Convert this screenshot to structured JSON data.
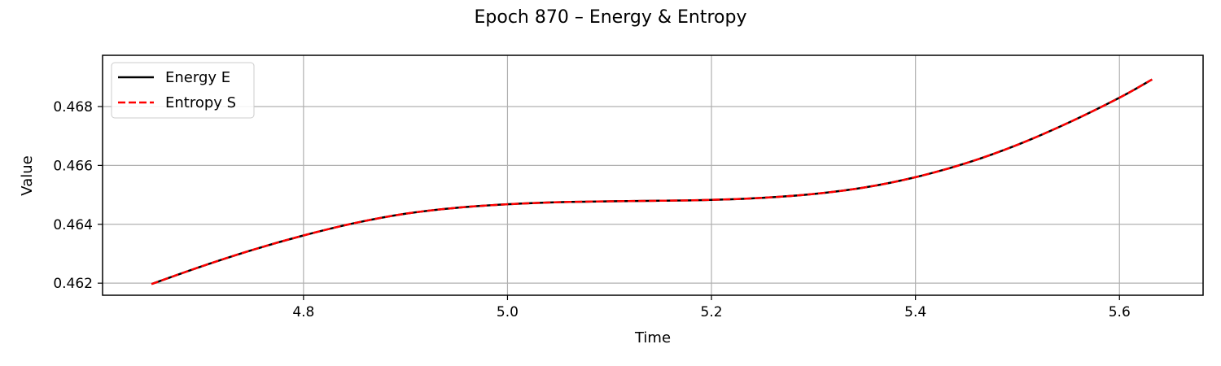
{
  "chart_data": {
    "type": "line",
    "title": "Epoch 870 – Energy & Entropy",
    "xlabel": "Time",
    "ylabel": "Value",
    "xlim": [
      4.603,
      5.682
    ],
    "ylim": [
      0.46159,
      0.46974
    ],
    "xticks": [
      4.8,
      5.0,
      5.2,
      5.4,
      5.6
    ],
    "xtick_labels": [
      "4.8",
      "5.0",
      "5.2",
      "5.4",
      "5.6"
    ],
    "yticks": [
      0.462,
      0.464,
      0.466,
      0.468
    ],
    "ytick_labels": [
      "0.462",
      "0.464",
      "0.466",
      "0.468"
    ],
    "grid": true,
    "legend_position": "top-left",
    "x": [
      4.651,
      4.7,
      4.75,
      4.8,
      4.85,
      4.9,
      4.95,
      5.0,
      5.05,
      5.1,
      5.15,
      5.2,
      5.25,
      5.3,
      5.35,
      5.4,
      5.45,
      5.5,
      5.55,
      5.6,
      5.632
    ],
    "series": [
      {
        "name": "Energy E",
        "color": "#000000",
        "style": "solid",
        "values": [
          0.46197,
          0.46257,
          0.46313,
          0.46362,
          0.46404,
          0.46436,
          0.46456,
          0.46468,
          0.46475,
          0.46478,
          0.4648,
          0.46483,
          0.4649,
          0.46503,
          0.46525,
          0.4656,
          0.46608,
          0.4667,
          0.46745,
          0.4683,
          0.46892
        ]
      },
      {
        "name": "Entropy S",
        "color": "#ff0000",
        "style": "dashed",
        "values": [
          0.46197,
          0.46257,
          0.46313,
          0.46362,
          0.46404,
          0.46436,
          0.46456,
          0.46468,
          0.46475,
          0.46478,
          0.4648,
          0.46483,
          0.4649,
          0.46503,
          0.46525,
          0.4656,
          0.46608,
          0.4667,
          0.46745,
          0.4683,
          0.46892
        ]
      }
    ]
  }
}
